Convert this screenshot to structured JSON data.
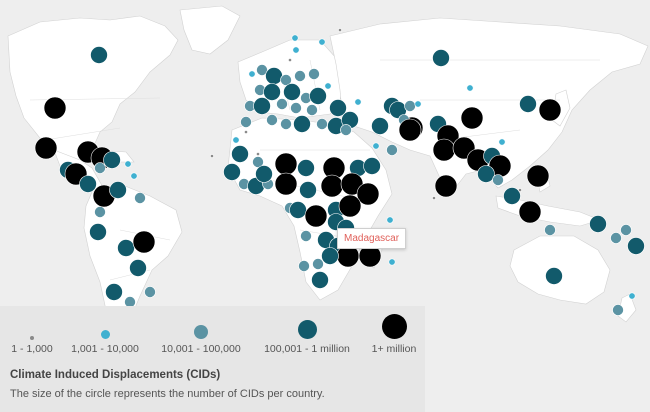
{
  "map": {
    "tooltip": "Madagascar",
    "colors": {
      "tier1": "#8a8a8a",
      "tier2": "#3fb0d0",
      "tier3": "#5b93a3",
      "tier4": "#125a6b",
      "tier5": "#000000"
    }
  },
  "legend": {
    "items": [
      {
        "label": "1 - 1,000",
        "tier": "tier1"
      },
      {
        "label": "1,001 - 10,000",
        "tier": "tier2"
      },
      {
        "label": "10,001 - 100,000",
        "tier": "tier3"
      },
      {
        "label": "100,001 - 1 million",
        "tier": "tier4"
      },
      {
        "label": "1+ million",
        "tier": "tier5"
      }
    ],
    "title": "Climate Induced Displacements (CIDs)",
    "subtitle": "The size of the circle represents the number of CIDs per country."
  }
}
